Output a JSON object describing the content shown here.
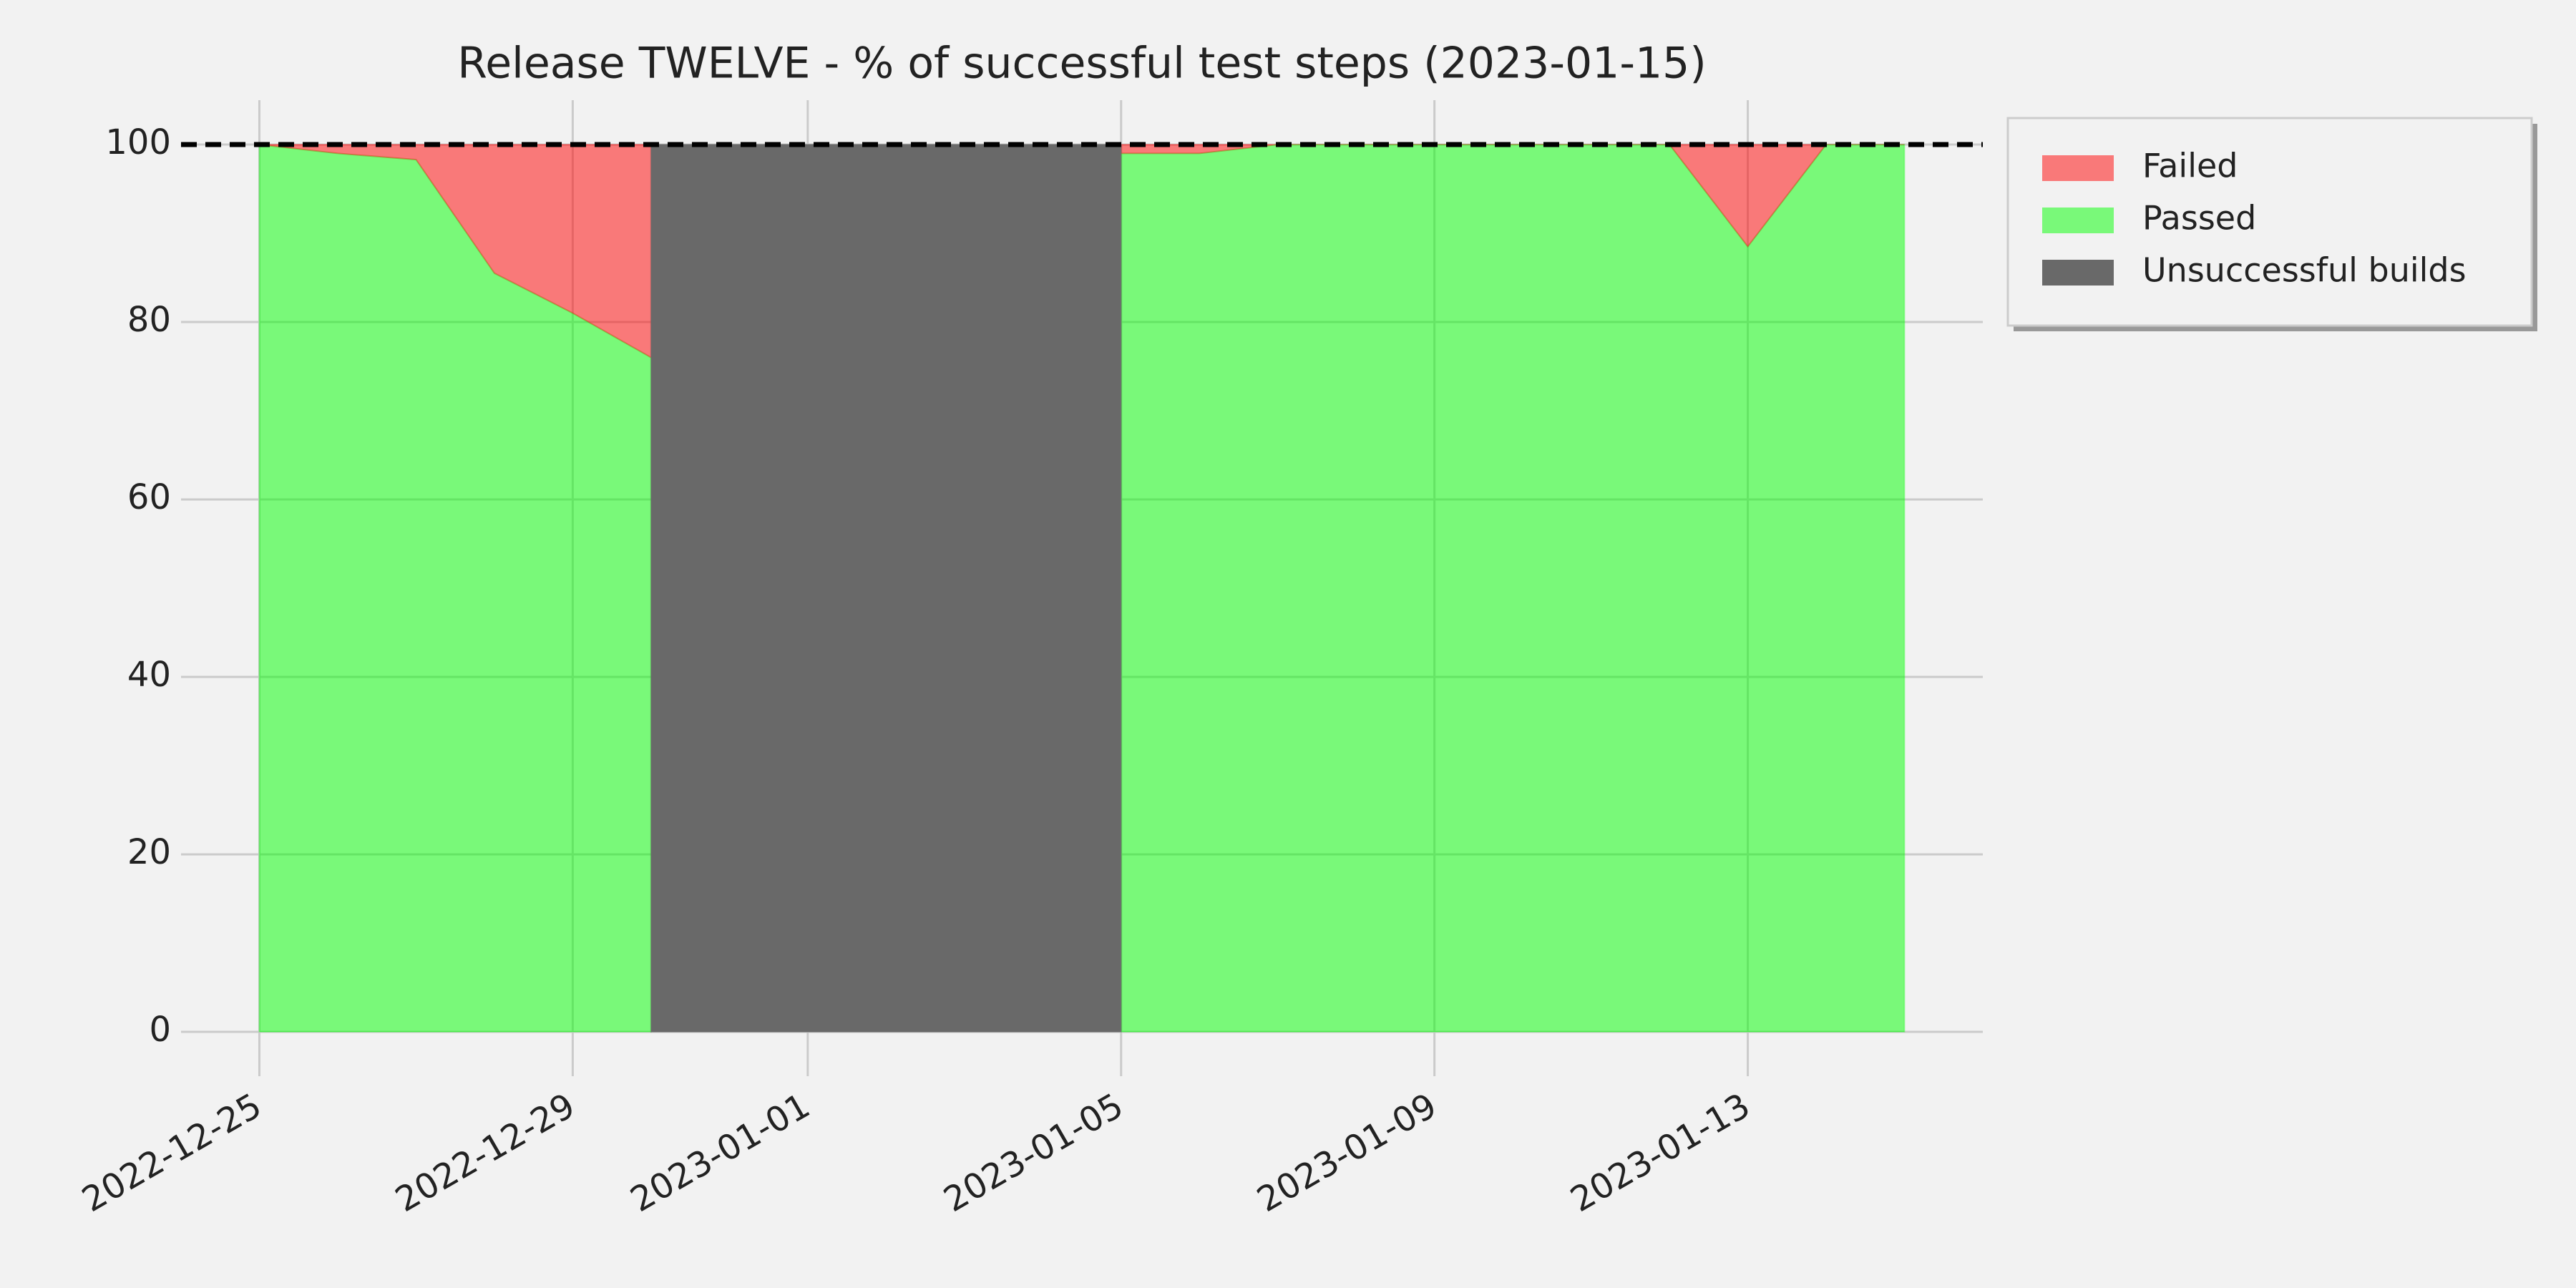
{
  "chart_data": {
    "type": "stacked_area",
    "title": "Release TWELVE - % of successful test steps (2023-01-15)",
    "x": [
      "2022-12-25",
      "2022-12-26",
      "2022-12-27",
      "2022-12-28",
      "2022-12-29",
      "2022-12-30",
      "2022-12-31",
      "2023-01-01",
      "2023-01-02",
      "2023-01-03",
      "2023-01-04",
      "2023-01-05",
      "2023-01-06",
      "2023-01-07",
      "2023-01-08",
      "2023-01-09",
      "2023-01-10",
      "2023-01-11",
      "2023-01-12",
      "2023-01-13",
      "2023-01-14",
      "2023-01-15"
    ],
    "series": [
      {
        "name": "Passed",
        "color": "#00ff00",
        "opacity": 0.5,
        "stack": true,
        "values": [
          100,
          99,
          98.3,
          85.5,
          81,
          76,
          null,
          null,
          null,
          null,
          null,
          99,
          99,
          100,
          100,
          100,
          100,
          100,
          100,
          88.5,
          100,
          100
        ]
      },
      {
        "name": "Failed",
        "color": "#ff0000",
        "opacity": 0.5,
        "stack": true,
        "values": [
          0,
          1,
          1.7,
          14.5,
          19,
          24,
          null,
          null,
          null,
          null,
          null,
          1,
          1,
          0,
          0,
          0,
          0,
          0,
          0,
          11.5,
          0,
          0
        ]
      },
      {
        "name": "Unsuccessful builds",
        "color": "#696969",
        "opacity": 1,
        "stack": false,
        "values": [
          null,
          null,
          null,
          null,
          null,
          100,
          100,
          100,
          100,
          100,
          100,
          100,
          null,
          null,
          null,
          null,
          null,
          null,
          null,
          null,
          null,
          null
        ]
      }
    ],
    "legend_order": [
      1,
      0,
      2
    ],
    "reference_line": 100,
    "xlim": [
      "2022-12-24",
      "2023-01-16"
    ],
    "xticks": [
      "2022-12-25",
      "2022-12-29",
      "2023-01-01",
      "2023-01-05",
      "2023-01-09",
      "2023-01-13"
    ],
    "ylim": [
      -5,
      105
    ],
    "yticks": [
      0,
      20,
      40,
      60,
      80,
      100
    ],
    "grid": true,
    "legend": "outside-upper-right"
  }
}
